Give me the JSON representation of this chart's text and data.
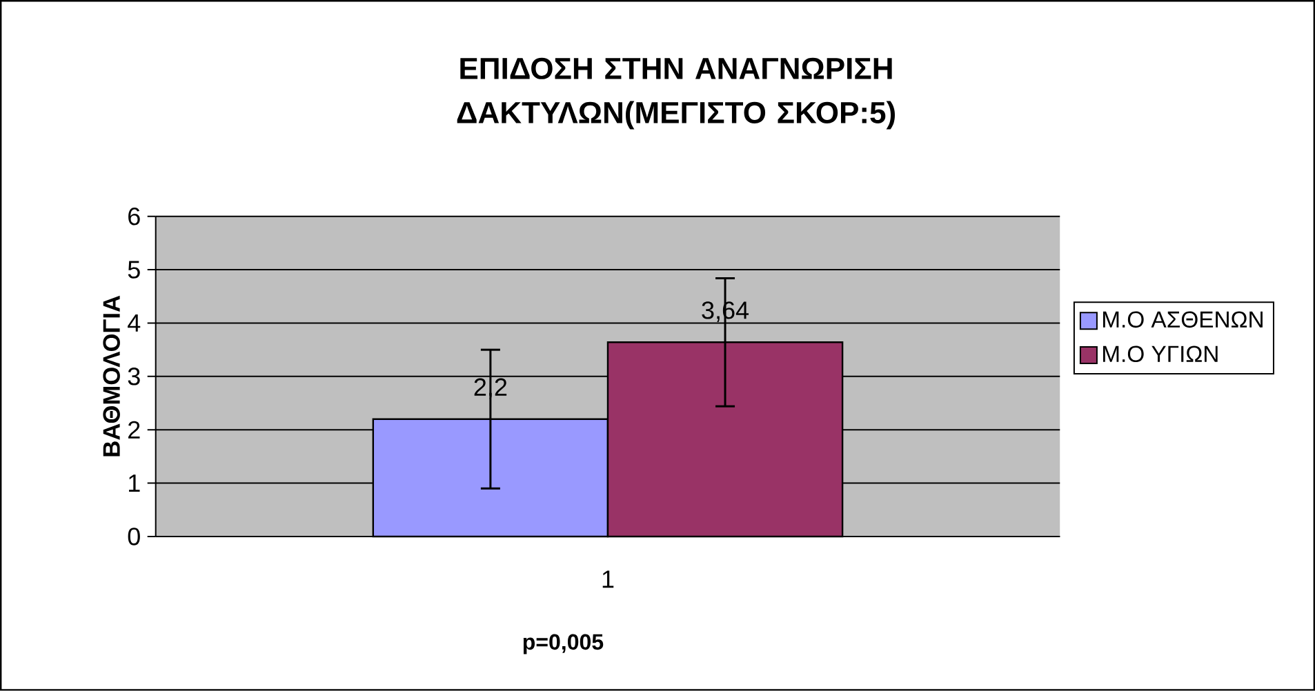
{
  "chart_data": {
    "type": "bar",
    "title": "ΕΠΙΔΟΣΗ ΣΤΗΝ ΑΝΑΓΝΩΡΙΣΗ ΔΑΚΤΥΛΩΝ(ΜΕΓΙΣΤΟ ΣΚΟΡ:5)",
    "ylabel": "ΒΑΘΜΟΛΟΓΙΑ",
    "categories": [
      "1"
    ],
    "series": [
      {
        "name": "Μ.Ο ΑΣΘΕΝΩΝ",
        "color": "#9999ff",
        "values": [
          2.2
        ],
        "errors": [
          1.3
        ],
        "value_labels": [
          "2,2"
        ]
      },
      {
        "name": "Μ.Ο ΥΓΙΩΝ",
        "color": "#993366",
        "values": [
          3.64
        ],
        "errors": [
          1.2
        ],
        "value_labels": [
          "3,64"
        ]
      }
    ],
    "ylim": [
      0,
      6
    ],
    "yticks": [
      0,
      1,
      2,
      3,
      4,
      5,
      6
    ],
    "grid": "y",
    "legend": "right",
    "annotations": [
      "p=0,005"
    ]
  }
}
